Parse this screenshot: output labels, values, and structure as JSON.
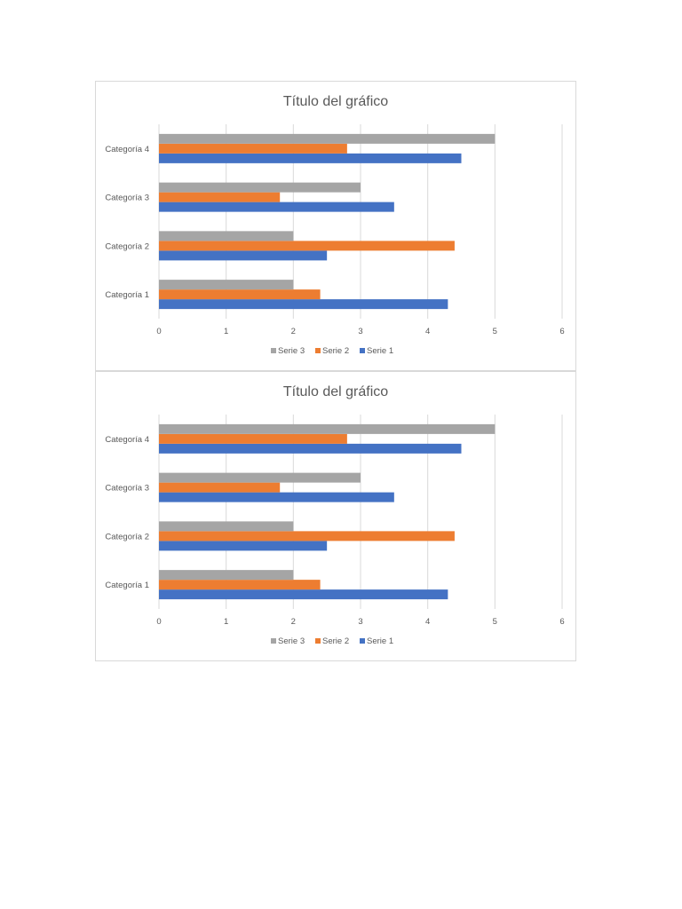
{
  "chart_data": [
    {
      "type": "bar",
      "orientation": "horizontal",
      "title": "Título del gráfico",
      "xlabel": "",
      "ylabel": "",
      "categories": [
        "Categoría 1",
        "Categoría 2",
        "Categoría 3",
        "Categoría 4"
      ],
      "series": [
        {
          "name": "Serie 1",
          "color": "#4472C4",
          "values": [
            4.3,
            2.5,
            3.5,
            4.5
          ]
        },
        {
          "name": "Serie 2",
          "color": "#ED7D31",
          "values": [
            2.4,
            4.4,
            1.8,
            2.8
          ]
        },
        {
          "name": "Serie 3",
          "color": "#A5A5A5",
          "values": [
            2,
            2,
            3,
            5
          ]
        }
      ],
      "xlim": [
        0,
        6
      ],
      "xticks": [
        "0",
        "1",
        "2",
        "3",
        "4",
        "5",
        "6"
      ],
      "grid": "vertical",
      "legend": "bottom",
      "legend_order": [
        "Serie 3",
        "Serie 2",
        "Serie 1"
      ]
    },
    {
      "type": "bar",
      "orientation": "horizontal",
      "title": "Título del gráfico",
      "xlabel": "",
      "ylabel": "",
      "categories": [
        "Categoría 1",
        "Categoría 2",
        "Categoría 3",
        "Categoría 4"
      ],
      "series": [
        {
          "name": "Serie 1",
          "color": "#4472C4",
          "values": [
            4.3,
            2.5,
            3.5,
            4.5
          ]
        },
        {
          "name": "Serie 2",
          "color": "#ED7D31",
          "values": [
            2.4,
            4.4,
            1.8,
            2.8
          ]
        },
        {
          "name": "Serie 3",
          "color": "#A5A5A5",
          "values": [
            2,
            2,
            3,
            5
          ]
        }
      ],
      "xlim": [
        0,
        6
      ],
      "xticks": [
        "0",
        "1",
        "2",
        "3",
        "4",
        "5",
        "6"
      ],
      "grid": "vertical",
      "legend": "bottom",
      "legend_order": [
        "Serie 3",
        "Serie 2",
        "Serie 1"
      ]
    }
  ]
}
